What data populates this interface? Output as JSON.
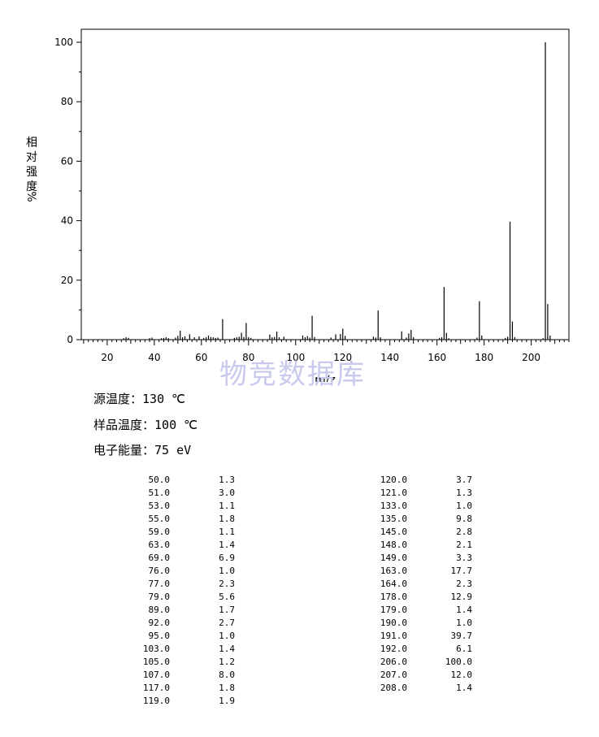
{
  "watermark": "物竞数据库",
  "info": {
    "source_temp_label": "源温度：",
    "source_temp_value": "130 ℃",
    "sample_temp_label": "样品温度：",
    "sample_temp_value": "100 ℃",
    "electron_energy_label": "电子能量：",
    "electron_energy_value": "75 eV"
  },
  "peak_table": {
    "left": [
      {
        "mz": "50.0",
        "intensity": "1.3"
      },
      {
        "mz": "51.0",
        "intensity": "3.0"
      },
      {
        "mz": "53.0",
        "intensity": "1.1"
      },
      {
        "mz": "55.0",
        "intensity": "1.8"
      },
      {
        "mz": "59.0",
        "intensity": "1.1"
      },
      {
        "mz": "63.0",
        "intensity": "1.4"
      },
      {
        "mz": "69.0",
        "intensity": "6.9"
      },
      {
        "mz": "76.0",
        "intensity": "1.0"
      },
      {
        "mz": "77.0",
        "intensity": "2.3"
      },
      {
        "mz": "79.0",
        "intensity": "5.6"
      },
      {
        "mz": "89.0",
        "intensity": "1.7"
      },
      {
        "mz": "92.0",
        "intensity": "2.7"
      },
      {
        "mz": "95.0",
        "intensity": "1.0"
      },
      {
        "mz": "103.0",
        "intensity": "1.4"
      },
      {
        "mz": "105.0",
        "intensity": "1.2"
      },
      {
        "mz": "107.0",
        "intensity": "8.0"
      },
      {
        "mz": "117.0",
        "intensity": "1.8"
      },
      {
        "mz": "119.0",
        "intensity": "1.9"
      }
    ],
    "right": [
      {
        "mz": "120.0",
        "intensity": "3.7"
      },
      {
        "mz": "121.0",
        "intensity": "1.3"
      },
      {
        "mz": "133.0",
        "intensity": "1.0"
      },
      {
        "mz": "135.0",
        "intensity": "9.8"
      },
      {
        "mz": "145.0",
        "intensity": "2.8"
      },
      {
        "mz": "148.0",
        "intensity": "2.1"
      },
      {
        "mz": "149.0",
        "intensity": "3.3"
      },
      {
        "mz": "163.0",
        "intensity": "17.7"
      },
      {
        "mz": "164.0",
        "intensity": "2.3"
      },
      {
        "mz": "178.0",
        "intensity": "12.9"
      },
      {
        "mz": "179.0",
        "intensity": "1.4"
      },
      {
        "mz": "190.0",
        "intensity": "1.0"
      },
      {
        "mz": "191.0",
        "intensity": "39.7"
      },
      {
        "mz": "192.0",
        "intensity": "6.1"
      },
      {
        "mz": "206.0",
        "intensity": "100.0"
      },
      {
        "mz": "207.0",
        "intensity": "12.0"
      },
      {
        "mz": "208.0",
        "intensity": "1.4"
      }
    ]
  },
  "chart_data": {
    "type": "bar",
    "title": "",
    "xlabel": "m/z",
    "ylabel": "相对强度%",
    "xlim": [
      9,
      216
    ],
    "ylim": [
      0,
      105
    ],
    "x_ticks": [
      20,
      40,
      60,
      80,
      100,
      120,
      140,
      160,
      180,
      200
    ],
    "y_ticks": [
      0,
      20,
      40,
      60,
      80,
      100
    ],
    "grid": false,
    "x": [
      27,
      28,
      29,
      38,
      39,
      43,
      44,
      45,
      46,
      49,
      50,
      51,
      52,
      53,
      55,
      57,
      59,
      61,
      62,
      63,
      64,
      65,
      66,
      67,
      69,
      74,
      75,
      76,
      77,
      78,
      79,
      80,
      81,
      89,
      90,
      91,
      92,
      93,
      95,
      103,
      104,
      105,
      106,
      107,
      108,
      115,
      117,
      119,
      120,
      121,
      133,
      134,
      135,
      136,
      145,
      147,
      148,
      149,
      150,
      161,
      162,
      163,
      164,
      165,
      177,
      178,
      179,
      189,
      190,
      191,
      192,
      193,
      205,
      206,
      207,
      208
    ],
    "values": [
      0.5,
      0.8,
      0.6,
      0.5,
      0.7,
      0.5,
      0.6,
      0.8,
      0.5,
      0.7,
      1.3,
      3.0,
      0.8,
      1.1,
      1.8,
      0.8,
      1.1,
      0.6,
      0.8,
      1.4,
      0.9,
      0.8,
      0.6,
      0.7,
      6.9,
      0.6,
      0.8,
      1.0,
      2.3,
      0.9,
      5.6,
      0.8,
      0.6,
      1.7,
      0.8,
      0.9,
      2.7,
      0.8,
      1.0,
      1.4,
      0.8,
      1.2,
      0.7,
      8.0,
      0.9,
      0.7,
      1.8,
      1.9,
      3.7,
      1.3,
      1.0,
      0.7,
      9.8,
      0.8,
      2.8,
      0.7,
      2.1,
      3.3,
      0.8,
      0.6,
      0.8,
      17.7,
      2.3,
      0.5,
      0.7,
      12.9,
      1.4,
      0.6,
      1.0,
      39.7,
      6.1,
      0.8,
      0.5,
      100.0,
      12.0,
      1.4
    ]
  }
}
